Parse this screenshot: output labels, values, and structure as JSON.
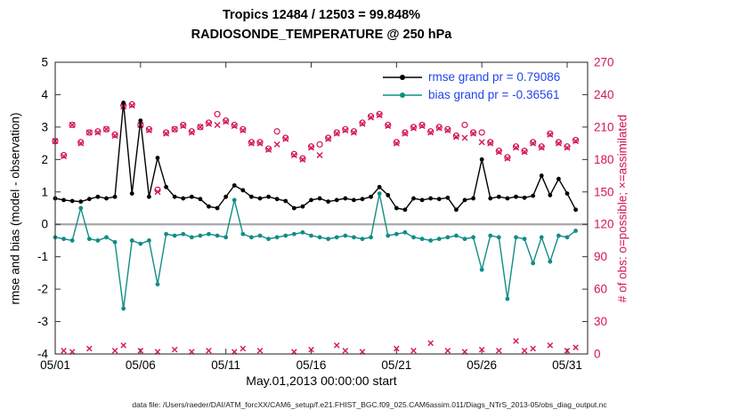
{
  "chart_data": {
    "type": "line",
    "title1": "Tropics 12484 / 12503 = 99.848%",
    "title2": "RADIOSONDE_TEMPERATURE @ 250 hPa",
    "xlabel": "May.01,2013 00:00:00 start",
    "ylabel_left": "rmse and bias (model - observation)",
    "ylabel_right": "# of obs: o=possible; ×=assimilated",
    "footer": "data file: /Users/raeder/DAI/ATM_forcXX/CAM6_setup/f.e21.FHIST_BGC.f09_025.CAM6assim.011/Diags_NTrS_2013-05/obs_diag_output.nc",
    "grid": false,
    "legend_position": "top-right",
    "xlim_days": [
      1,
      32.2
    ],
    "ylim_left": [
      -4,
      5
    ],
    "ylim_right": [
      0,
      270
    ],
    "xticks": {
      "days": [
        1,
        6,
        11,
        16,
        21,
        26,
        31
      ],
      "labels": [
        "05/01",
        "05/06",
        "05/11",
        "05/16",
        "05/21",
        "05/26",
        "05/31"
      ]
    },
    "yticks_left": [
      -4,
      -3,
      -2,
      -1,
      0,
      1,
      2,
      3,
      4,
      5
    ],
    "yticks_right": [
      0,
      30,
      60,
      90,
      120,
      150,
      180,
      210,
      240,
      270
    ],
    "colors": {
      "rmse": "#000000",
      "bias": "#108d85",
      "obs": "#d4145a",
      "legend_text": "#2244ee",
      "zero_line": "#a8a8a8",
      "axis": "#333333"
    },
    "legend": [
      {
        "label": "rmse grand pr = 0.79086",
        "series": "rmse",
        "color": "#000000"
      },
      {
        "label": "bias grand pr = -0.36561",
        "series": "bias",
        "color": "#108d85"
      }
    ],
    "x_days": [
      1,
      1.5,
      2,
      2.5,
      3,
      3.5,
      4,
      4.5,
      5,
      5.5,
      6,
      6.5,
      7,
      7.5,
      8,
      8.5,
      9,
      9.5,
      10,
      10.5,
      11,
      11.5,
      12,
      12.5,
      13,
      13.5,
      14,
      14.5,
      15,
      15.5,
      16,
      16.5,
      17,
      17.5,
      18,
      18.5,
      19,
      19.5,
      20,
      20.5,
      21,
      21.5,
      22,
      22.5,
      23,
      23.5,
      24,
      24.5,
      25,
      25.5,
      26,
      26.5,
      27,
      27.5,
      28,
      28.5,
      29,
      29.5,
      30,
      30.5,
      31,
      31.5
    ],
    "series": [
      {
        "name": "rmse",
        "color_key": "rmse",
        "values": [
          0.8,
          0.75,
          0.72,
          0.7,
          0.78,
          0.85,
          0.8,
          0.85,
          3.75,
          0.95,
          3.2,
          0.85,
          2.05,
          1.15,
          0.85,
          0.8,
          0.85,
          0.78,
          0.55,
          0.5,
          0.85,
          1.2,
          1.05,
          0.85,
          0.8,
          0.85,
          0.78,
          0.72,
          0.5,
          0.55,
          0.75,
          0.8,
          0.7,
          0.75,
          0.8,
          0.75,
          0.78,
          0.85,
          1.15,
          0.9,
          0.5,
          0.45,
          0.8,
          0.75,
          0.8,
          0.78,
          0.82,
          0.45,
          0.75,
          0.8,
          2.0,
          0.8,
          0.85,
          0.8,
          0.85,
          0.82,
          0.88,
          1.5,
          0.9,
          1.4,
          0.95,
          0.45
        ]
      },
      {
        "name": "bias",
        "color_key": "bias",
        "values": [
          -0.4,
          -0.45,
          -0.5,
          0.5,
          -0.45,
          -0.5,
          -0.4,
          -0.55,
          -2.6,
          -0.5,
          -0.6,
          -0.5,
          -1.85,
          -0.3,
          -0.35,
          -0.3,
          -0.4,
          -0.35,
          -0.3,
          -0.35,
          -0.4,
          0.75,
          -0.3,
          -0.4,
          -0.35,
          -0.45,
          -0.4,
          -0.35,
          -0.3,
          -0.25,
          -0.35,
          -0.4,
          -0.45,
          -0.4,
          -0.35,
          -0.4,
          -0.45,
          -0.4,
          0.95,
          -0.35,
          -0.3,
          -0.25,
          -0.4,
          -0.45,
          -0.5,
          -0.45,
          -0.4,
          -0.35,
          -0.45,
          -0.4,
          -1.4,
          -0.35,
          -0.4,
          -2.3,
          -0.4,
          -0.45,
          -1.2,
          -0.4,
          -1.15,
          -0.35,
          -0.4,
          -0.2
        ]
      }
    ],
    "obs_counts": {
      "possible": [
        197,
        184,
        212,
        196,
        205,
        206,
        208,
        203,
        230,
        231,
        212,
        208,
        152,
        205,
        208,
        212,
        206,
        210,
        214,
        222,
        216,
        212,
        208,
        196,
        196,
        190,
        206,
        200,
        185,
        181,
        192,
        194,
        200,
        205,
        208,
        206,
        214,
        220,
        222,
        212,
        196,
        205,
        210,
        212,
        206,
        210,
        208,
        202,
        212,
        205,
        205,
        196,
        188,
        182,
        192,
        188,
        196,
        192,
        204,
        196,
        192,
        198
      ],
      "assimilated": [
        197,
        183,
        212,
        195,
        205,
        205,
        208,
        202,
        229,
        230,
        212,
        207,
        150,
        204,
        208,
        211,
        205,
        210,
        213,
        212,
        215,
        211,
        207,
        195,
        195,
        189,
        194,
        199,
        184,
        180,
        191,
        184,
        199,
        204,
        207,
        205,
        213,
        219,
        221,
        211,
        195,
        204,
        209,
        211,
        205,
        209,
        207,
        201,
        200,
        204,
        196,
        195,
        187,
        181,
        191,
        187,
        195,
        191,
        203,
        195,
        191,
        197
      ],
      "near_zero": {
        "x_days": [
          1.5,
          2,
          3,
          4.5,
          5,
          6,
          7,
          8,
          9,
          10,
          11.5,
          12,
          13,
          15,
          16,
          17.5,
          18,
          19,
          21,
          22,
          23,
          24,
          25,
          26,
          27,
          28,
          28.5,
          29,
          30,
          31,
          31.5
        ],
        "values": [
          3,
          2,
          5,
          3,
          8,
          3,
          2,
          4,
          2,
          3,
          2,
          5,
          3,
          2,
          4,
          8,
          3,
          2,
          5,
          3,
          10,
          3,
          2,
          4,
          3,
          12,
          3,
          5,
          8,
          3,
          6
        ]
      }
    }
  }
}
